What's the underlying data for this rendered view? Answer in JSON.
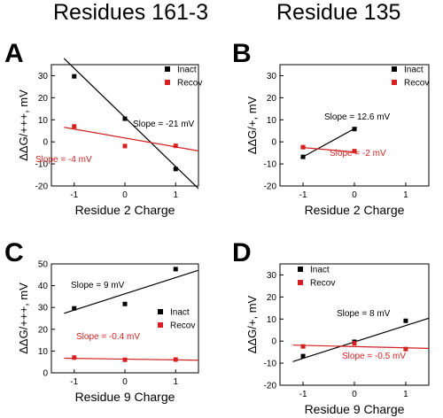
{
  "column_titles": [
    "Residues 161-3",
    "Residue 135"
  ],
  "colors": {
    "inact": "#000000",
    "recov": "#d42020",
    "axis": "#000000"
  },
  "chart_data": [
    {
      "type": "scatter",
      "panel_label": "A",
      "xlabel": "Residue 2 Charge",
      "ylabel": "ΔΔG/+++, mV",
      "xlim": [
        -1.45,
        1.45
      ],
      "ylim": [
        -20,
        35
      ],
      "xticks": [
        -1,
        0,
        1
      ],
      "yticks": [
        -20,
        -10,
        0,
        10,
        20,
        30
      ],
      "legend": "top-right",
      "series": [
        {
          "name": "Inact",
          "x": [
            -1,
            0,
            1
          ],
          "y": [
            29.7,
            10.5,
            -12.3
          ],
          "fit": [
            [
              -1.2,
              37.8
            ],
            [
              1.45,
              -21.2
            ]
          ],
          "slope_label": "Slope = -21 mV"
        },
        {
          "name": "Recov",
          "x": [
            -1,
            0,
            1
          ],
          "y": [
            7.0,
            -1.9,
            -1.8
          ],
          "fit": [
            [
              -1.2,
              6.6
            ],
            [
              1.45,
              -4.1
            ]
          ],
          "slope_label": "Slope = -4 mV"
        }
      ]
    },
    {
      "type": "scatter",
      "panel_label": "B",
      "xlabel": "Residue 2 Charge",
      "ylabel": "ΔΔG/+, mV",
      "xlim": [
        -1.45,
        1.45
      ],
      "ylim": [
        -20,
        35
      ],
      "xticks": [
        -1,
        0,
        1
      ],
      "yticks": [
        -20,
        -10,
        0,
        10,
        20,
        30
      ],
      "legend": "top-right",
      "series": [
        {
          "name": "Inact",
          "x": [
            -1,
            0
          ],
          "y": [
            -6.8,
            5.8
          ],
          "fit": [
            [
              -1.05,
              -7.4
            ],
            [
              0.05,
              6.6
            ]
          ],
          "slope_label": "Slope = 12.6 mV"
        },
        {
          "name": "Recov",
          "x": [
            -1,
            0
          ],
          "y": [
            -2.4,
            -4.2
          ],
          "fit": [
            [
              -1.05,
              -2.5
            ],
            [
              0.05,
              -4.7
            ]
          ],
          "slope_label": "Slope = -2 mV"
        }
      ]
    },
    {
      "type": "scatter",
      "panel_label": "C",
      "xlabel": "Residue 9 Charge",
      "ylabel": "ΔΔG/+++, mV",
      "xlim": [
        -1.45,
        1.45
      ],
      "ylim": [
        0,
        50
      ],
      "xticks": [
        -1,
        0,
        1
      ],
      "yticks": [
        0,
        10,
        20,
        30,
        40,
        50
      ],
      "legend": "center-right",
      "series": [
        {
          "name": "Inact",
          "x": [
            -1,
            0,
            1
          ],
          "y": [
            29.6,
            31.6,
            47.6
          ],
          "fit": [
            [
              -1.2,
              27.3
            ],
            [
              1.45,
              47.1
            ]
          ],
          "slope_label": "Slope = 9 mV"
        },
        {
          "name": "Recov",
          "x": [
            -1,
            0,
            1
          ],
          "y": [
            7.0,
            6.0,
            6.1
          ],
          "fit": [
            [
              -1.2,
              6.7
            ],
            [
              1.45,
              5.8
            ]
          ],
          "slope_label": "Slope = -0.4 mV"
        }
      ]
    },
    {
      "type": "scatter",
      "panel_label": "D",
      "xlabel": "Residue 9 Charge",
      "ylabel": "ΔΔG/+, mV",
      "xlim": [
        -1.45,
        1.45
      ],
      "ylim": [
        -20,
        35
      ],
      "xticks": [
        -1,
        0,
        1
      ],
      "yticks": [
        -20,
        -10,
        0,
        10,
        20,
        30
      ],
      "legend": "top-left",
      "series": [
        {
          "name": "Inact",
          "x": [
            -1,
            0,
            1
          ],
          "y": [
            -6.8,
            -0.3,
            9.2
          ],
          "fit": [
            [
              -1.2,
              -9.3
            ],
            [
              1.45,
              10.4
            ]
          ],
          "slope_label": "Slope = 8 mV"
        },
        {
          "name": "Recov",
          "x": [
            -1,
            0,
            1
          ],
          "y": [
            -2.4,
            -1.0,
            -3.6
          ],
          "fit": [
            [
              -1.2,
              -1.8
            ],
            [
              1.45,
              -3.3
            ]
          ],
          "slope_label": "Slope = -0.5 mV"
        }
      ]
    }
  ]
}
